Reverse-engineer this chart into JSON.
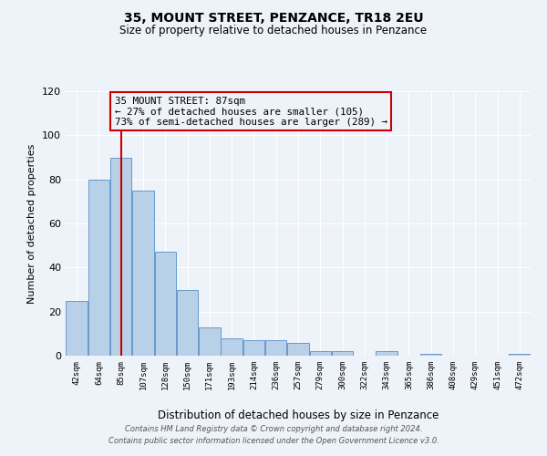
{
  "title": "35, MOUNT STREET, PENZANCE, TR18 2EU",
  "subtitle": "Size of property relative to detached houses in Penzance",
  "xlabel": "Distribution of detached houses by size in Penzance",
  "ylabel": "Number of detached properties",
  "bin_labels": [
    "42sqm",
    "64sqm",
    "85sqm",
    "107sqm",
    "128sqm",
    "150sqm",
    "171sqm",
    "193sqm",
    "214sqm",
    "236sqm",
    "257sqm",
    "279sqm",
    "300sqm",
    "322sqm",
    "343sqm",
    "365sqm",
    "386sqm",
    "408sqm",
    "429sqm",
    "451sqm",
    "472sqm"
  ],
  "bar_values": [
    25,
    80,
    90,
    75,
    47,
    30,
    13,
    8,
    7,
    7,
    6,
    2,
    2,
    0,
    2,
    0,
    1,
    0,
    0,
    0,
    1
  ],
  "bar_color": "#b8d0e8",
  "bar_edge_color": "#6699cc",
  "ylim": [
    0,
    120
  ],
  "yticks": [
    0,
    20,
    40,
    60,
    80,
    100,
    120
  ],
  "property_label": "35 MOUNT STREET: 87sqm",
  "annotation_line1": "← 27% of detached houses are smaller (105)",
  "annotation_line2": "73% of semi-detached houses are larger (289) →",
  "vline_x_label": "85sqm",
  "vline_color": "#cc0000",
  "annotation_box_edgecolor": "#cc0000",
  "background_color": "#eef2f9",
  "grid_color": "#ffffff",
  "footer_line1": "Contains HM Land Registry data © Crown copyright and database right 2024.",
  "footer_line2": "Contains public sector information licensed under the Open Government Licence v3.0."
}
